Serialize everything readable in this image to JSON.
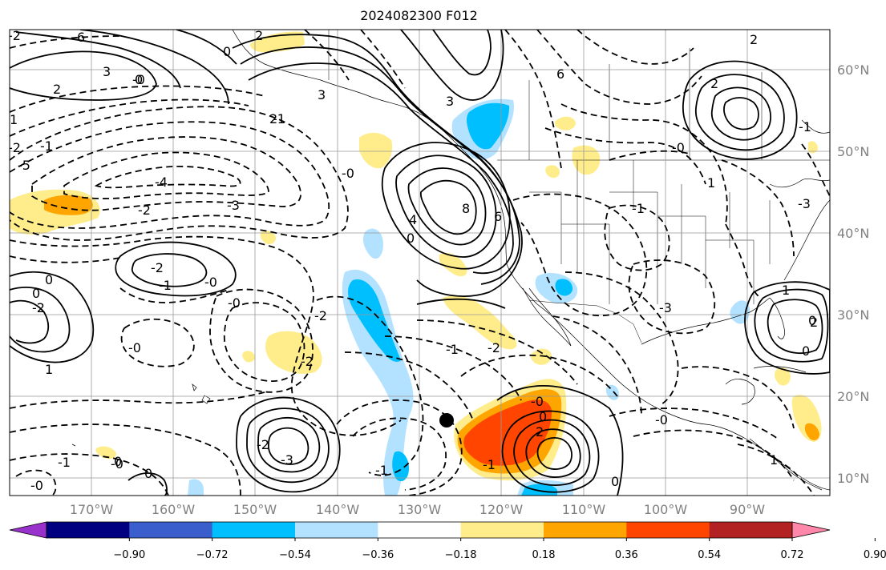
{
  "title": "2024082300 F012",
  "map": {
    "projection": "Plate Carree",
    "lon_range": [
      -180,
      -80
    ],
    "lat_range": [
      7,
      64
    ],
    "lat_labels": [
      "60°N",
      "50°N",
      "40°N",
      "30°N",
      "20°N",
      "10°N"
    ],
    "lon_labels": [
      "170°W",
      "160°W",
      "150°W",
      "140°W",
      "130°W",
      "120°W",
      "110°W",
      "100°W",
      "90°W"
    ],
    "contour_labels": [
      "6",
      "2",
      "3",
      "2",
      "0",
      "0",
      "1",
      "3",
      "2",
      "-2",
      "-5",
      "-1",
      "-4",
      "-2",
      "-3",
      "-2",
      "-1",
      "-0",
      "0",
      "-0",
      "-2",
      "-0",
      "0",
      "-2",
      "-1",
      "1",
      "-2",
      "-2",
      "-3",
      "-1",
      "-0",
      "-0",
      "-1",
      "4",
      "6",
      "8",
      "0",
      "-0",
      "0",
      "-0",
      "0",
      "-0",
      "2",
      "3",
      "6",
      "2",
      "2",
      "-1",
      "-3",
      "-1",
      "2",
      "1",
      "0",
      "-2",
      "-1",
      "-0",
      "1",
      "0",
      "0",
      "1",
      "-3",
      "-1",
      "-2",
      "-0",
      "0"
    ],
    "marker": {
      "name": "storm-center",
      "lon": -127,
      "lat": 17
    }
  },
  "colorbar": {
    "tick_labels": [
      "−0.90",
      "−0.72",
      "−0.54",
      "−0.36",
      "−0.18",
      "0.18",
      "0.36",
      "0.54",
      "0.72",
      "0.90"
    ],
    "colors": [
      "#9932cc",
      "#000080",
      "#3a5fcd",
      "#00bfff",
      "#b2e2ff",
      "#ffffff",
      "#ffec8b",
      "#ffa500",
      "#ff4500",
      "#b22222",
      "#ff88aa"
    ]
  }
}
